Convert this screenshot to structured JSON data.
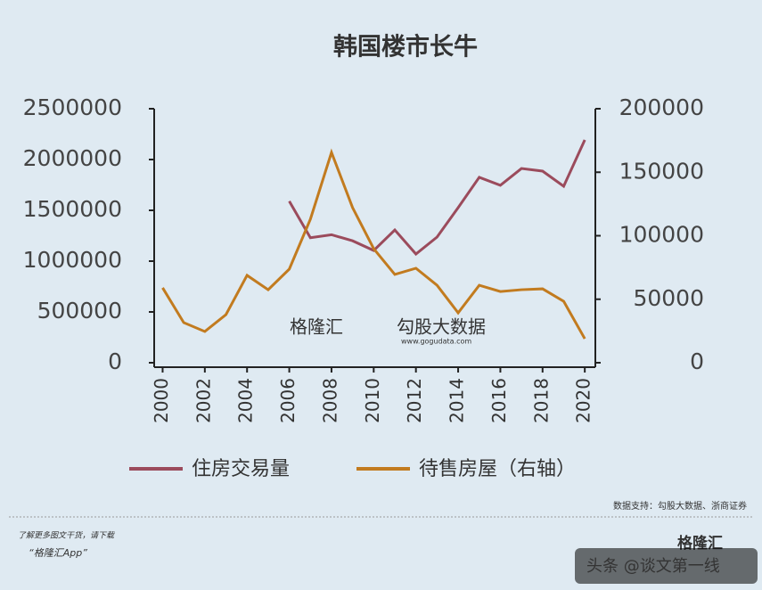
{
  "chart_data": {
    "type": "line",
    "title": "韩国楼市长牛",
    "x": [
      2000,
      2001,
      2002,
      2003,
      2004,
      2005,
      2006,
      2007,
      2008,
      2009,
      2010,
      2011,
      2012,
      2013,
      2014,
      2015,
      2016,
      2017,
      2018,
      2019,
      2020
    ],
    "xlim": [
      1999.6,
      2020.5
    ],
    "xticks": [
      2000,
      2002,
      2004,
      2006,
      2008,
      2010,
      2012,
      2014,
      2016,
      2018,
      2020
    ],
    "ylim": [
      0,
      2500000
    ],
    "yticks": [
      0,
      500000,
      1000000,
      1500000,
      2000000,
      2500000
    ],
    "y2lim": [
      0,
      200000
    ],
    "y2ticks": [
      0,
      50000,
      100000,
      150000,
      200000
    ],
    "series": [
      {
        "name": "住房交易量",
        "color": "#9b4b5c",
        "values": [
          null,
          null,
          null,
          null,
          null,
          null,
          1590000,
          1230000,
          1260000,
          1200000,
          1105000,
          1307000,
          1070000,
          1237000,
          1526000,
          1825000,
          1746000,
          1912000,
          1886000,
          1737000,
          2193000
        ]
      },
      {
        "name": "待售房屋（右轴）",
        "color": "#c27b1f",
        "axis": "y2",
        "values": [
          59000,
          31600,
          24600,
          37900,
          68800,
          57500,
          73700,
          113000,
          165600,
          122100,
          89800,
          69500,
          74400,
          61000,
          39300,
          61000,
          56100,
          57500,
          58200,
          48400,
          18900
        ]
      }
    ],
    "source": "数据支持：勾股大数据、浙商证券",
    "watermark": [
      "格隆汇",
      "勾股大数据",
      "www.gogudata.com"
    ]
  },
  "footer": {
    "note": "了解更多图文干货，请下载",
    "app": "“格隆汇App”",
    "logo": "格隆汇",
    "credit": "头条 @谈文第一线"
  }
}
